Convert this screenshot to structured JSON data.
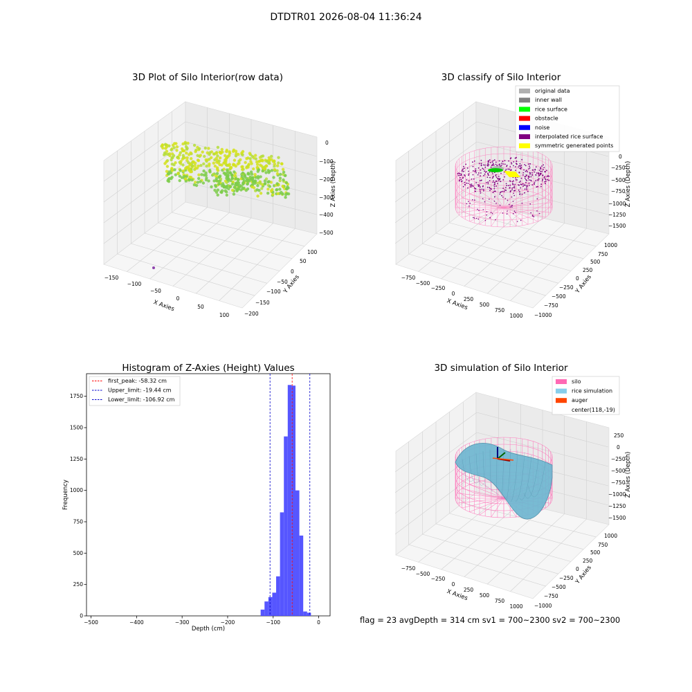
{
  "suptitle": "DTDTR01 2026-08-04 11:36:24",
  "footer": "flag = 23   avgDepth = 314 cm  sv1 = 700~2300  sv2 = 700~2300",
  "colors": {
    "raw_points": "#c8e31a",
    "raw_points_low": "#7ccc4a",
    "raw_outlier": "#8e44ad",
    "silo_mesh": "#ff69b4",
    "histogram_bar": "#4d4dff",
    "first_peak_line": "#ff0000",
    "limit_lines": "#0000cc",
    "rice_surface_fill": "#6fb7d1",
    "rice_surface_line": "#4a8aa6"
  },
  "panel_raw": {
    "title": "3D Plot of Silo Interior(row data)",
    "xlabel": "X Axies",
    "ylabel": "Y Axies",
    "zlabel": "Z Axies (Depth)",
    "xticks": [
      "−150",
      "−100",
      "−50",
      "0",
      "50",
      "100"
    ],
    "yticks": [
      "100",
      "50",
      "0",
      "−50",
      "−100",
      "−150",
      "−200"
    ],
    "zticks": [
      "0",
      "−100",
      "−200",
      "−300",
      "−400",
      "−500"
    ]
  },
  "panel_classify": {
    "title": "3D classify of Silo Interior",
    "legend": [
      {
        "label": "original data",
        "color": "#b0b0b0"
      },
      {
        "label": "inner wall",
        "color": "#808080"
      },
      {
        "label": "rice surface",
        "color": "#00ff00"
      },
      {
        "label": "obstacle",
        "color": "#ff0000"
      },
      {
        "label": "noise",
        "color": "#0000ff"
      },
      {
        "label": "interpolated rice surface",
        "color": "#800080"
      },
      {
        "label": "symmetric generated points",
        "color": "#ffff00"
      }
    ],
    "xlabel": "X Axies",
    "ylabel": "Y Axies",
    "zlabel": "Z Axies (Depth)",
    "xticks": [
      "−750",
      "−500",
      "−250",
      "0",
      "250",
      "500",
      "750",
      "1000"
    ],
    "yticks": [
      "1000",
      "750",
      "500",
      "250",
      "0",
      "−250",
      "−500",
      "−750",
      "−1000"
    ],
    "zticks": [
      "0",
      "−250",
      "−500",
      "−750",
      "−1000",
      "−1250",
      "−1500"
    ]
  },
  "panel_sim": {
    "title": "3D simulation of Silo Interior",
    "legend": [
      {
        "label": "silo",
        "color": "#ff69b4"
      },
      {
        "label": "rice simulation",
        "color": "#87ceeb"
      },
      {
        "label": "auger",
        "color": "#ff4500"
      },
      {
        "label": "center(118,-19)",
        "color": ""
      }
    ],
    "xlabel": "X Axies",
    "ylabel": "Y Axies",
    "zlabel": "Z Axies (Depth)",
    "xticks": [
      "−750",
      "−500",
      "−250",
      "0",
      "250",
      "500",
      "750",
      "1000"
    ],
    "yticks": [
      "1000",
      "750",
      "500",
      "250",
      "0",
      "−250",
      "−500",
      "−750",
      "−1000"
    ],
    "zticks": [
      "250",
      "0",
      "−250",
      "−500",
      "−750",
      "−1000",
      "−1250",
      "−1500"
    ]
  },
  "chart_data": [
    {
      "type": "scatter",
      "title": "3D Plot of Silo Interior(row data)",
      "xlabel": "X Axies",
      "ylabel": "Y Axies",
      "zlabel": "Z Axies (Depth)",
      "xlim": [
        -150,
        100
      ],
      "ylim": [
        -200,
        100
      ],
      "zlim": [
        -500,
        0
      ]
    },
    {
      "type": "scatter",
      "title": "3D classify of Silo Interior",
      "xlim": [
        -750,
        1000
      ],
      "ylim": [
        -1000,
        1000
      ],
      "zlim": [
        -1500,
        0
      ]
    },
    {
      "type": "bar",
      "title": "Histogram of Z-Axies (Height) Values",
      "xlabel": "Depth (cm)",
      "ylabel": "Frequency",
      "xlim": [
        -510,
        25
      ],
      "ylim": [
        0,
        1930
      ],
      "xticks": [
        "−500",
        "−400",
        "−300",
        "−200",
        "−100",
        "0"
      ],
      "yticks": [
        "0",
        "250",
        "500",
        "750",
        "1000",
        "1250",
        "1500",
        "1750"
      ],
      "bin_width": 8.5,
      "bins": [
        {
          "x0": -127.5,
          "value": 50
        },
        {
          "x0": -119.0,
          "value": 115
        },
        {
          "x0": -110.5,
          "value": 150
        },
        {
          "x0": -102.0,
          "value": 185
        },
        {
          "x0": -93.5,
          "value": 315
        },
        {
          "x0": -85.0,
          "value": 825
        },
        {
          "x0": -76.5,
          "value": 1430
        },
        {
          "x0": -68.0,
          "value": 1840
        },
        {
          "x0": -59.5,
          "value": 1835
        },
        {
          "x0": -51.0,
          "value": 1000
        },
        {
          "x0": -42.5,
          "value": 640
        },
        {
          "x0": -34.0,
          "value": 35
        },
        {
          "x0": -25.5,
          "value": 25
        }
      ],
      "lines": [
        {
          "label": "first_peak: -58.32 cm",
          "x": -58.32,
          "color": "#ff0000"
        },
        {
          "label": "Upper_limit: -19.44 cm",
          "x": -19.44,
          "color": "#0000cc"
        },
        {
          "label": "Lower_limit: -106.92 cm",
          "x": -106.92,
          "color": "#0000cc"
        }
      ],
      "legend": "top-left"
    },
    {
      "type": "area",
      "title": "3D simulation of Silo Interior",
      "xlim": [
        -750,
        1000
      ],
      "ylim": [
        -1000,
        1000
      ],
      "zlim": [
        -1500,
        250
      ]
    }
  ]
}
